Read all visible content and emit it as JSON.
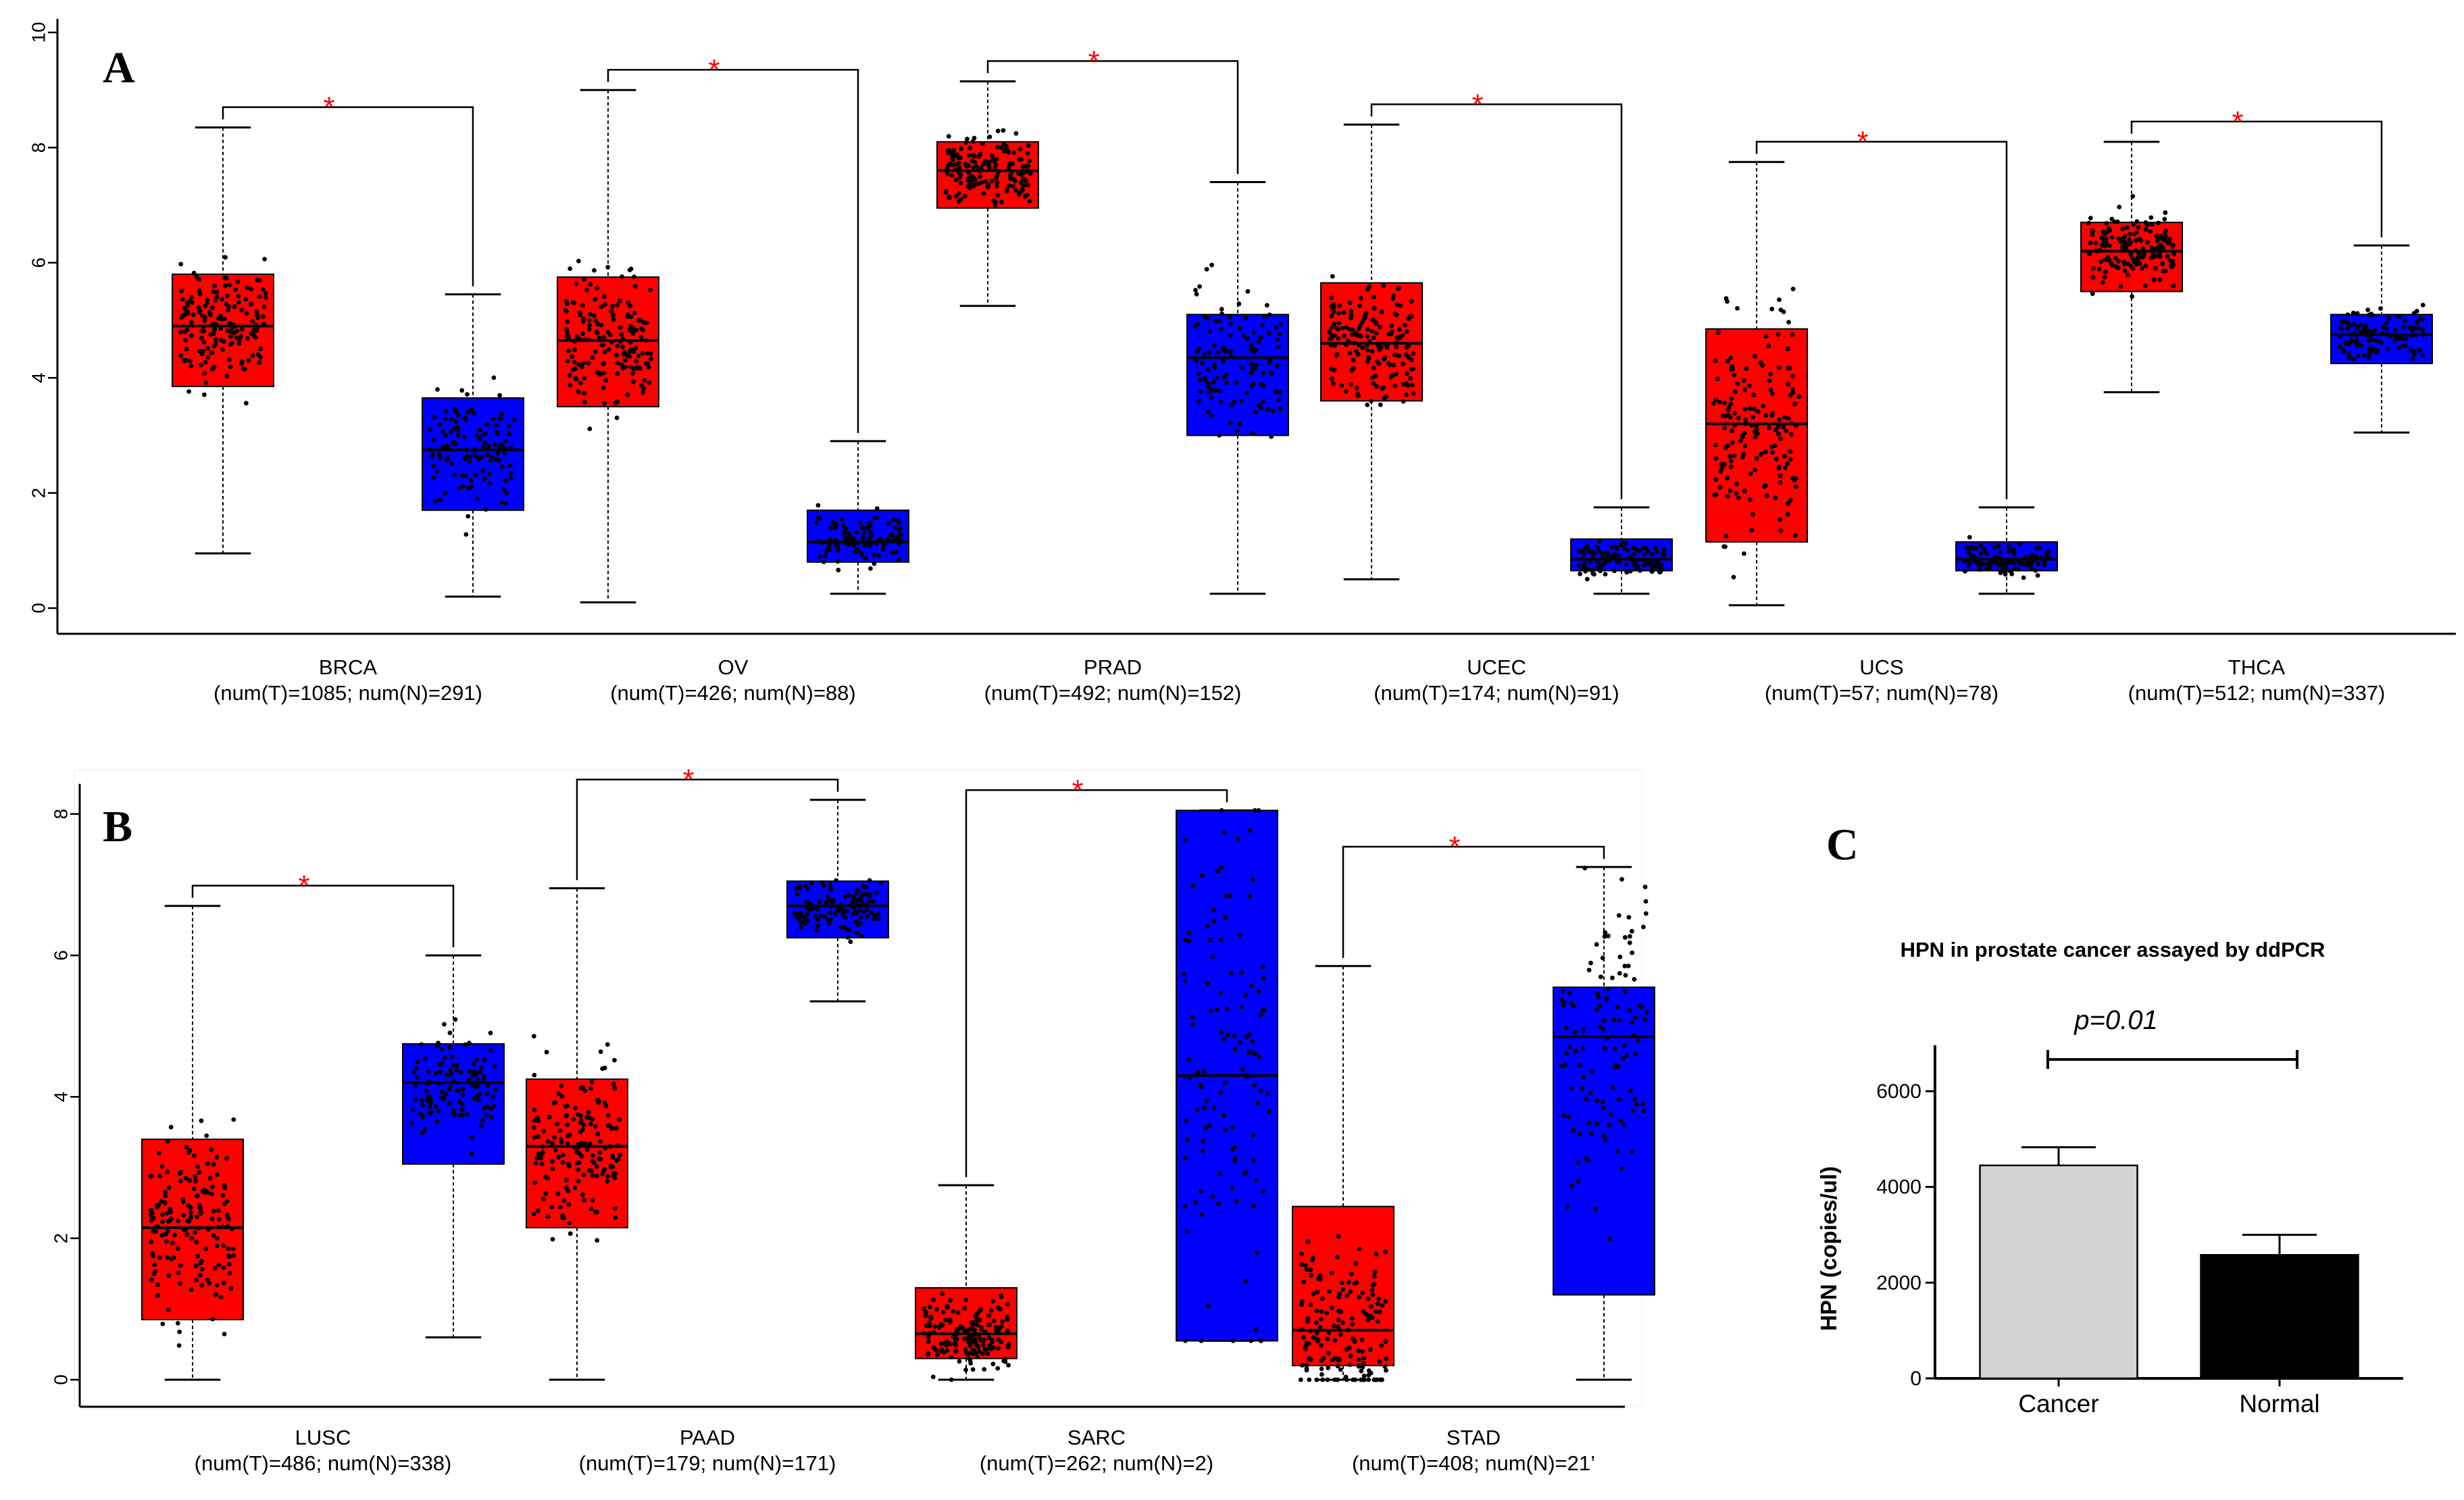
{
  "chart_data": [
    {
      "panel": "A",
      "type": "boxplot",
      "ylim": [
        0,
        10
      ],
      "yticks": [
        "0",
        "2",
        "4",
        "6",
        "8",
        "10"
      ],
      "colors": {
        "tumor": "#ff0000",
        "normal": "#0000ff"
      },
      "significance_marker": "*",
      "groups": [
        {
          "name": "BRCA",
          "counts": "(num(T)=1085; num(N)=291)",
          "tumor": {
            "q1": 3.85,
            "median": 4.9,
            "q3": 5.8,
            "lower": 0.95,
            "upper": 8.35
          },
          "normal": {
            "q1": 1.7,
            "median": 2.75,
            "q3": 3.65,
            "lower": 0.2,
            "upper": 5.45
          }
        },
        {
          "name": "OV",
          "counts": "(num(T)=426; num(N)=88)",
          "tumor": {
            "q1": 3.5,
            "median": 4.65,
            "q3": 5.75,
            "lower": 0.1,
            "upper": 9.0
          },
          "normal": {
            "q1": 0.8,
            "median": 1.15,
            "q3": 1.7,
            "lower": 0.25,
            "upper": 2.9
          }
        },
        {
          "name": "PRAD",
          "counts": "(num(T)=492; num(N)=152)",
          "tumor": {
            "q1": 6.95,
            "median": 7.6,
            "q3": 8.1,
            "lower": 5.25,
            "upper": 9.15
          },
          "normal": {
            "q1": 3.0,
            "median": 4.35,
            "q3": 5.1,
            "lower": 0.25,
            "upper": 7.4
          }
        },
        {
          "name": "UCEC",
          "counts": "(num(T)=174; num(N)=91)",
          "tumor": {
            "q1": 3.6,
            "median": 4.6,
            "q3": 5.65,
            "lower": 0.5,
            "upper": 8.4
          },
          "normal": {
            "q1": 0.65,
            "median": 0.85,
            "q3": 1.2,
            "lower": 0.25,
            "upper": 1.75
          }
        },
        {
          "name": "UCS",
          "counts": "(num(T)=57; num(N)=78)",
          "tumor": {
            "q1": 1.15,
            "median": 3.2,
            "q3": 4.85,
            "lower": 0.05,
            "upper": 7.75
          },
          "normal": {
            "q1": 0.65,
            "median": 0.85,
            "q3": 1.15,
            "lower": 0.25,
            "upper": 1.75
          }
        },
        {
          "name": "THCA",
          "counts": "(num(T)=512; num(N)=337)",
          "tumor": {
            "q1": 5.5,
            "median": 6.2,
            "q3": 6.7,
            "lower": 3.75,
            "upper": 8.1
          },
          "normal": {
            "q1": 4.25,
            "median": 4.75,
            "q3": 5.1,
            "lower": 3.05,
            "upper": 6.3
          }
        }
      ]
    },
    {
      "panel": "B",
      "type": "boxplot",
      "ylim": [
        0,
        9
      ],
      "yticks": [
        "0",
        "2",
        "4",
        "6",
        "8"
      ],
      "colors": {
        "tumor": "#ff0000",
        "normal": "#0000ff"
      },
      "significance_marker": "*",
      "groups": [
        {
          "name": "LUSC",
          "counts": "(num(T)=486; num(N)=338)",
          "tumor": {
            "q1": 0.85,
            "median": 2.15,
            "q3": 3.4,
            "lower": 0.0,
            "upper": 6.7
          },
          "normal": {
            "q1": 3.05,
            "median": 4.2,
            "q3": 4.75,
            "lower": 0.6,
            "upper": 6.0
          }
        },
        {
          "name": "PAAD",
          "counts": "(num(T)=179; num(N)=171)",
          "tumor": {
            "q1": 2.15,
            "median": 3.3,
            "q3": 4.25,
            "lower": 0.0,
            "upper": 6.95
          },
          "normal": {
            "q1": 6.25,
            "median": 6.7,
            "q3": 7.05,
            "lower": 5.35,
            "upper": 8.2
          }
        },
        {
          "name": "SARC",
          "counts": "(num(T)=262; num(N)=2)",
          "tumor": {
            "q1": 0.3,
            "median": 0.65,
            "q3": 1.3,
            "lower": 0.0,
            "upper": 2.75
          },
          "normal": {
            "q1": 0.55,
            "median": 4.3,
            "q3": 8.05,
            "lower": 0.55,
            "upper": 8.05
          }
        },
        {
          "name": "STAD",
          "counts": "(num(T)=408; num(N)=21’",
          "tumor": {
            "q1": 0.2,
            "median": 0.7,
            "q3": 2.45,
            "lower": 0.0,
            "upper": 5.85
          },
          "normal": {
            "q1": 1.2,
            "median": 4.85,
            "q3": 5.55,
            "lower": 0.0,
            "upper": 7.25
          }
        }
      ]
    },
    {
      "panel": "C",
      "type": "bar",
      "title": "HPN in prostate cancer assayed by ddPCR",
      "ylabel": "HPN (copies/ul)",
      "ylim": [
        0,
        7000
      ],
      "yticks": [
        "0",
        "2000",
        "4000",
        "6000"
      ],
      "categories": [
        "Cancer",
        "Normal"
      ],
      "values": [
        4450,
        2580
      ],
      "errors": [
        380,
        420
      ],
      "bar_colors": [
        "#d3d3d3",
        "#000000"
      ],
      "annotation": "p=0.01"
    }
  ]
}
